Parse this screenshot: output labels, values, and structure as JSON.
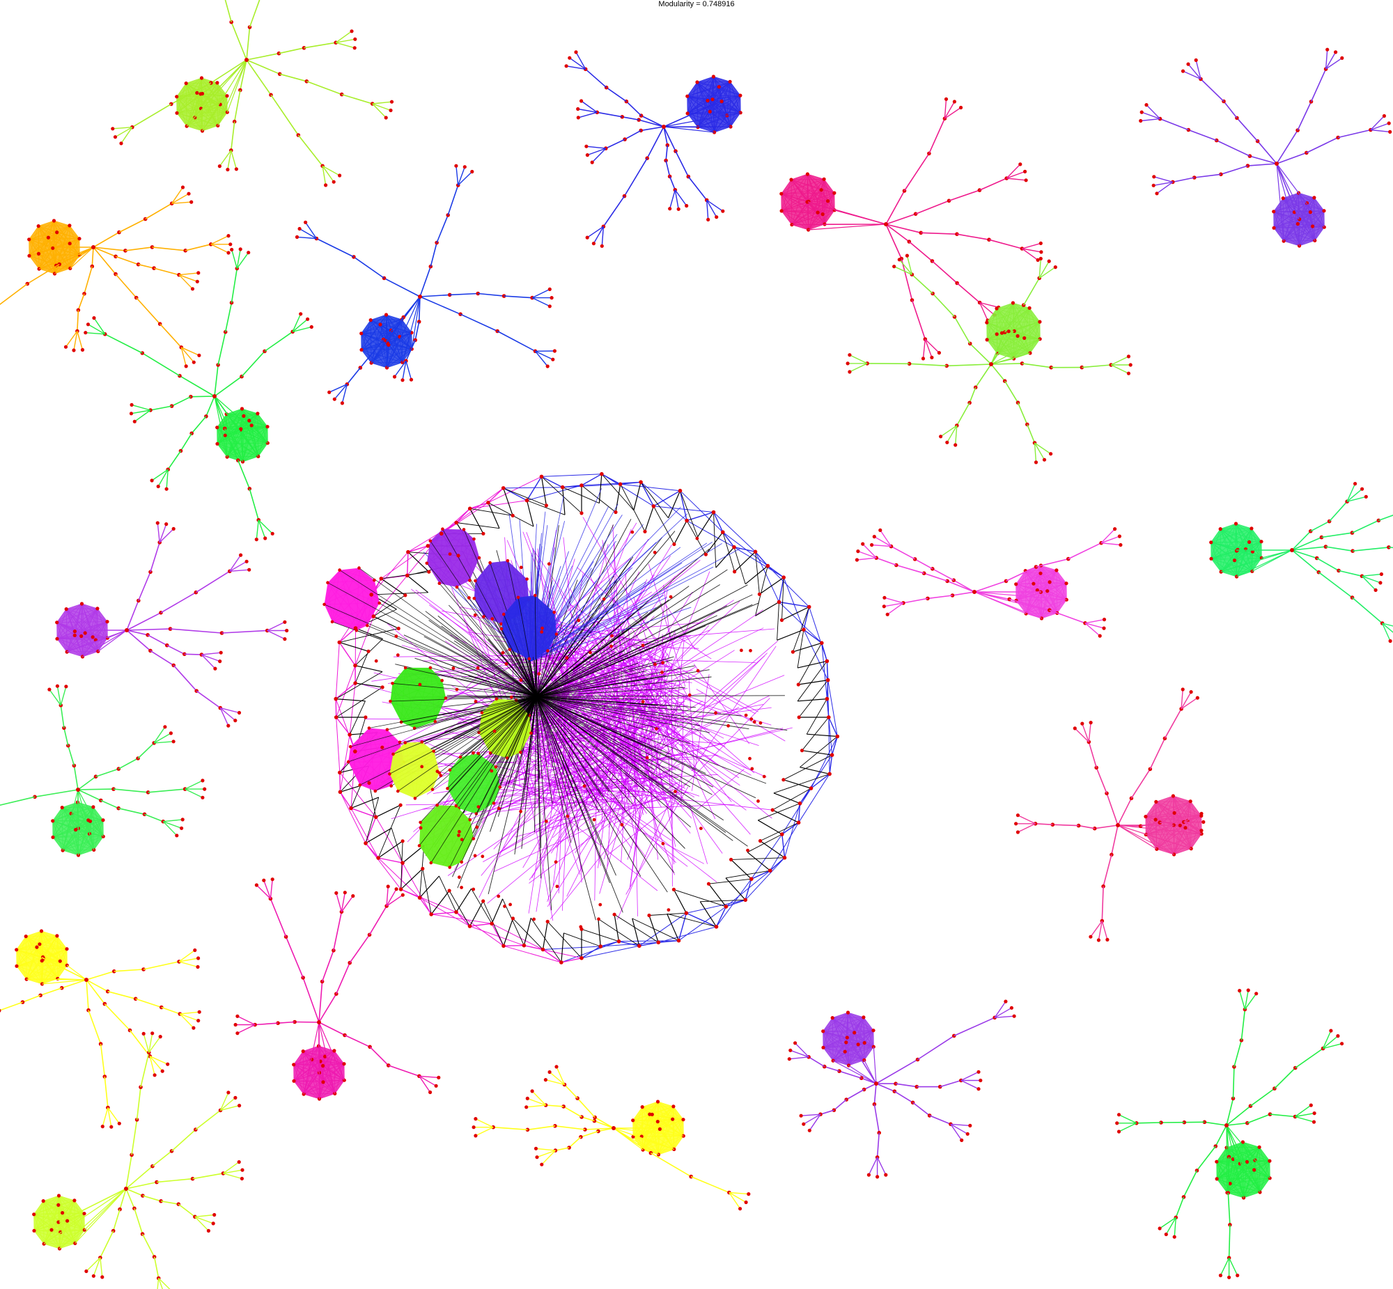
{
  "title": "Modularity = 0.748916",
  "node_color": "#e00000",
  "communities": [
    {
      "name": "community-olive-top-left",
      "color": "#a8ee2a",
      "branches": 7,
      "dense": false
    },
    {
      "name": "community-blue-top",
      "color": "#2a2ae6",
      "branches": 6,
      "dense": false
    },
    {
      "name": "community-pink-top",
      "color": "#ee1a8c",
      "branches": 4,
      "dense": false
    },
    {
      "name": "community-violet-top-right",
      "color": "#7a38e8",
      "branches": 5,
      "dense": false
    },
    {
      "name": "community-orange-left",
      "color": "#ffb000",
      "branches": 6,
      "dense": false
    },
    {
      "name": "community-blue-left",
      "color": "#1a3ae6",
      "branches": 6,
      "dense": false
    },
    {
      "name": "community-light-green-center-right",
      "color": "#88ee3a",
      "branches": 6,
      "dense": false
    },
    {
      "name": "community-green-left",
      "color": "#22ee44",
      "branches": 6,
      "dense": false
    },
    {
      "name": "community-purple-left",
      "color": "#b03ae8",
      "branches": 5,
      "dense": false
    },
    {
      "name": "community-magenta-right",
      "color": "#f040e0",
      "branches": 5,
      "dense": false
    },
    {
      "name": "community-green-right",
      "color": "#22ee66",
      "branches": 5,
      "dense": false
    },
    {
      "name": "community-green-left-lower",
      "color": "#3aee55",
      "branches": 5,
      "dense": false
    },
    {
      "name": "community-pink-right-lower",
      "color": "#f03a9e",
      "branches": 4,
      "dense": false
    },
    {
      "name": "community-yellow-left",
      "color": "#ffff1a",
      "branches": 5,
      "dense": false
    },
    {
      "name": "community-magenta-bottom-left",
      "color": "#ee1ab0",
      "branches": 6,
      "dense": false
    },
    {
      "name": "community-violet-bottom",
      "color": "#9a3ae8",
      "branches": 6,
      "dense": false
    },
    {
      "name": "community-yellow-bottom",
      "color": "#ffff1a",
      "branches": 5,
      "dense": false
    },
    {
      "name": "community-green-bottom-right",
      "color": "#22ee44",
      "branches": 6,
      "dense": false
    },
    {
      "name": "community-yellowgreen-bottom-left",
      "color": "#ccff2a",
      "branches": 6,
      "dense": false
    }
  ],
  "core": {
    "name": "central-core-cluster",
    "main_color": "#d000ff",
    "hull_color": "#2a2ae6",
    "outer_color": "#ee1ad8",
    "dark_edge_color": "#000000",
    "subclusters": [
      {
        "name": "core-violet",
        "color": "#9a2ae8"
      },
      {
        "name": "core-blue-violet",
        "color": "#6a2ae8"
      },
      {
        "name": "core-blue",
        "color": "#2a2ae6"
      },
      {
        "name": "core-magenta",
        "color": "#ff1ae0"
      },
      {
        "name": "core-green",
        "color": "#3ae81a"
      },
      {
        "name": "core-yellowgreen",
        "color": "#bbff1a"
      },
      {
        "name": "core-magenta-lower",
        "color": "#ff1ae0"
      },
      {
        "name": "core-yellow",
        "color": "#ddff2a"
      },
      {
        "name": "core-green-mid",
        "color": "#44ee2a"
      },
      {
        "name": "core-green-lower",
        "color": "#66ee1a"
      }
    ]
  }
}
